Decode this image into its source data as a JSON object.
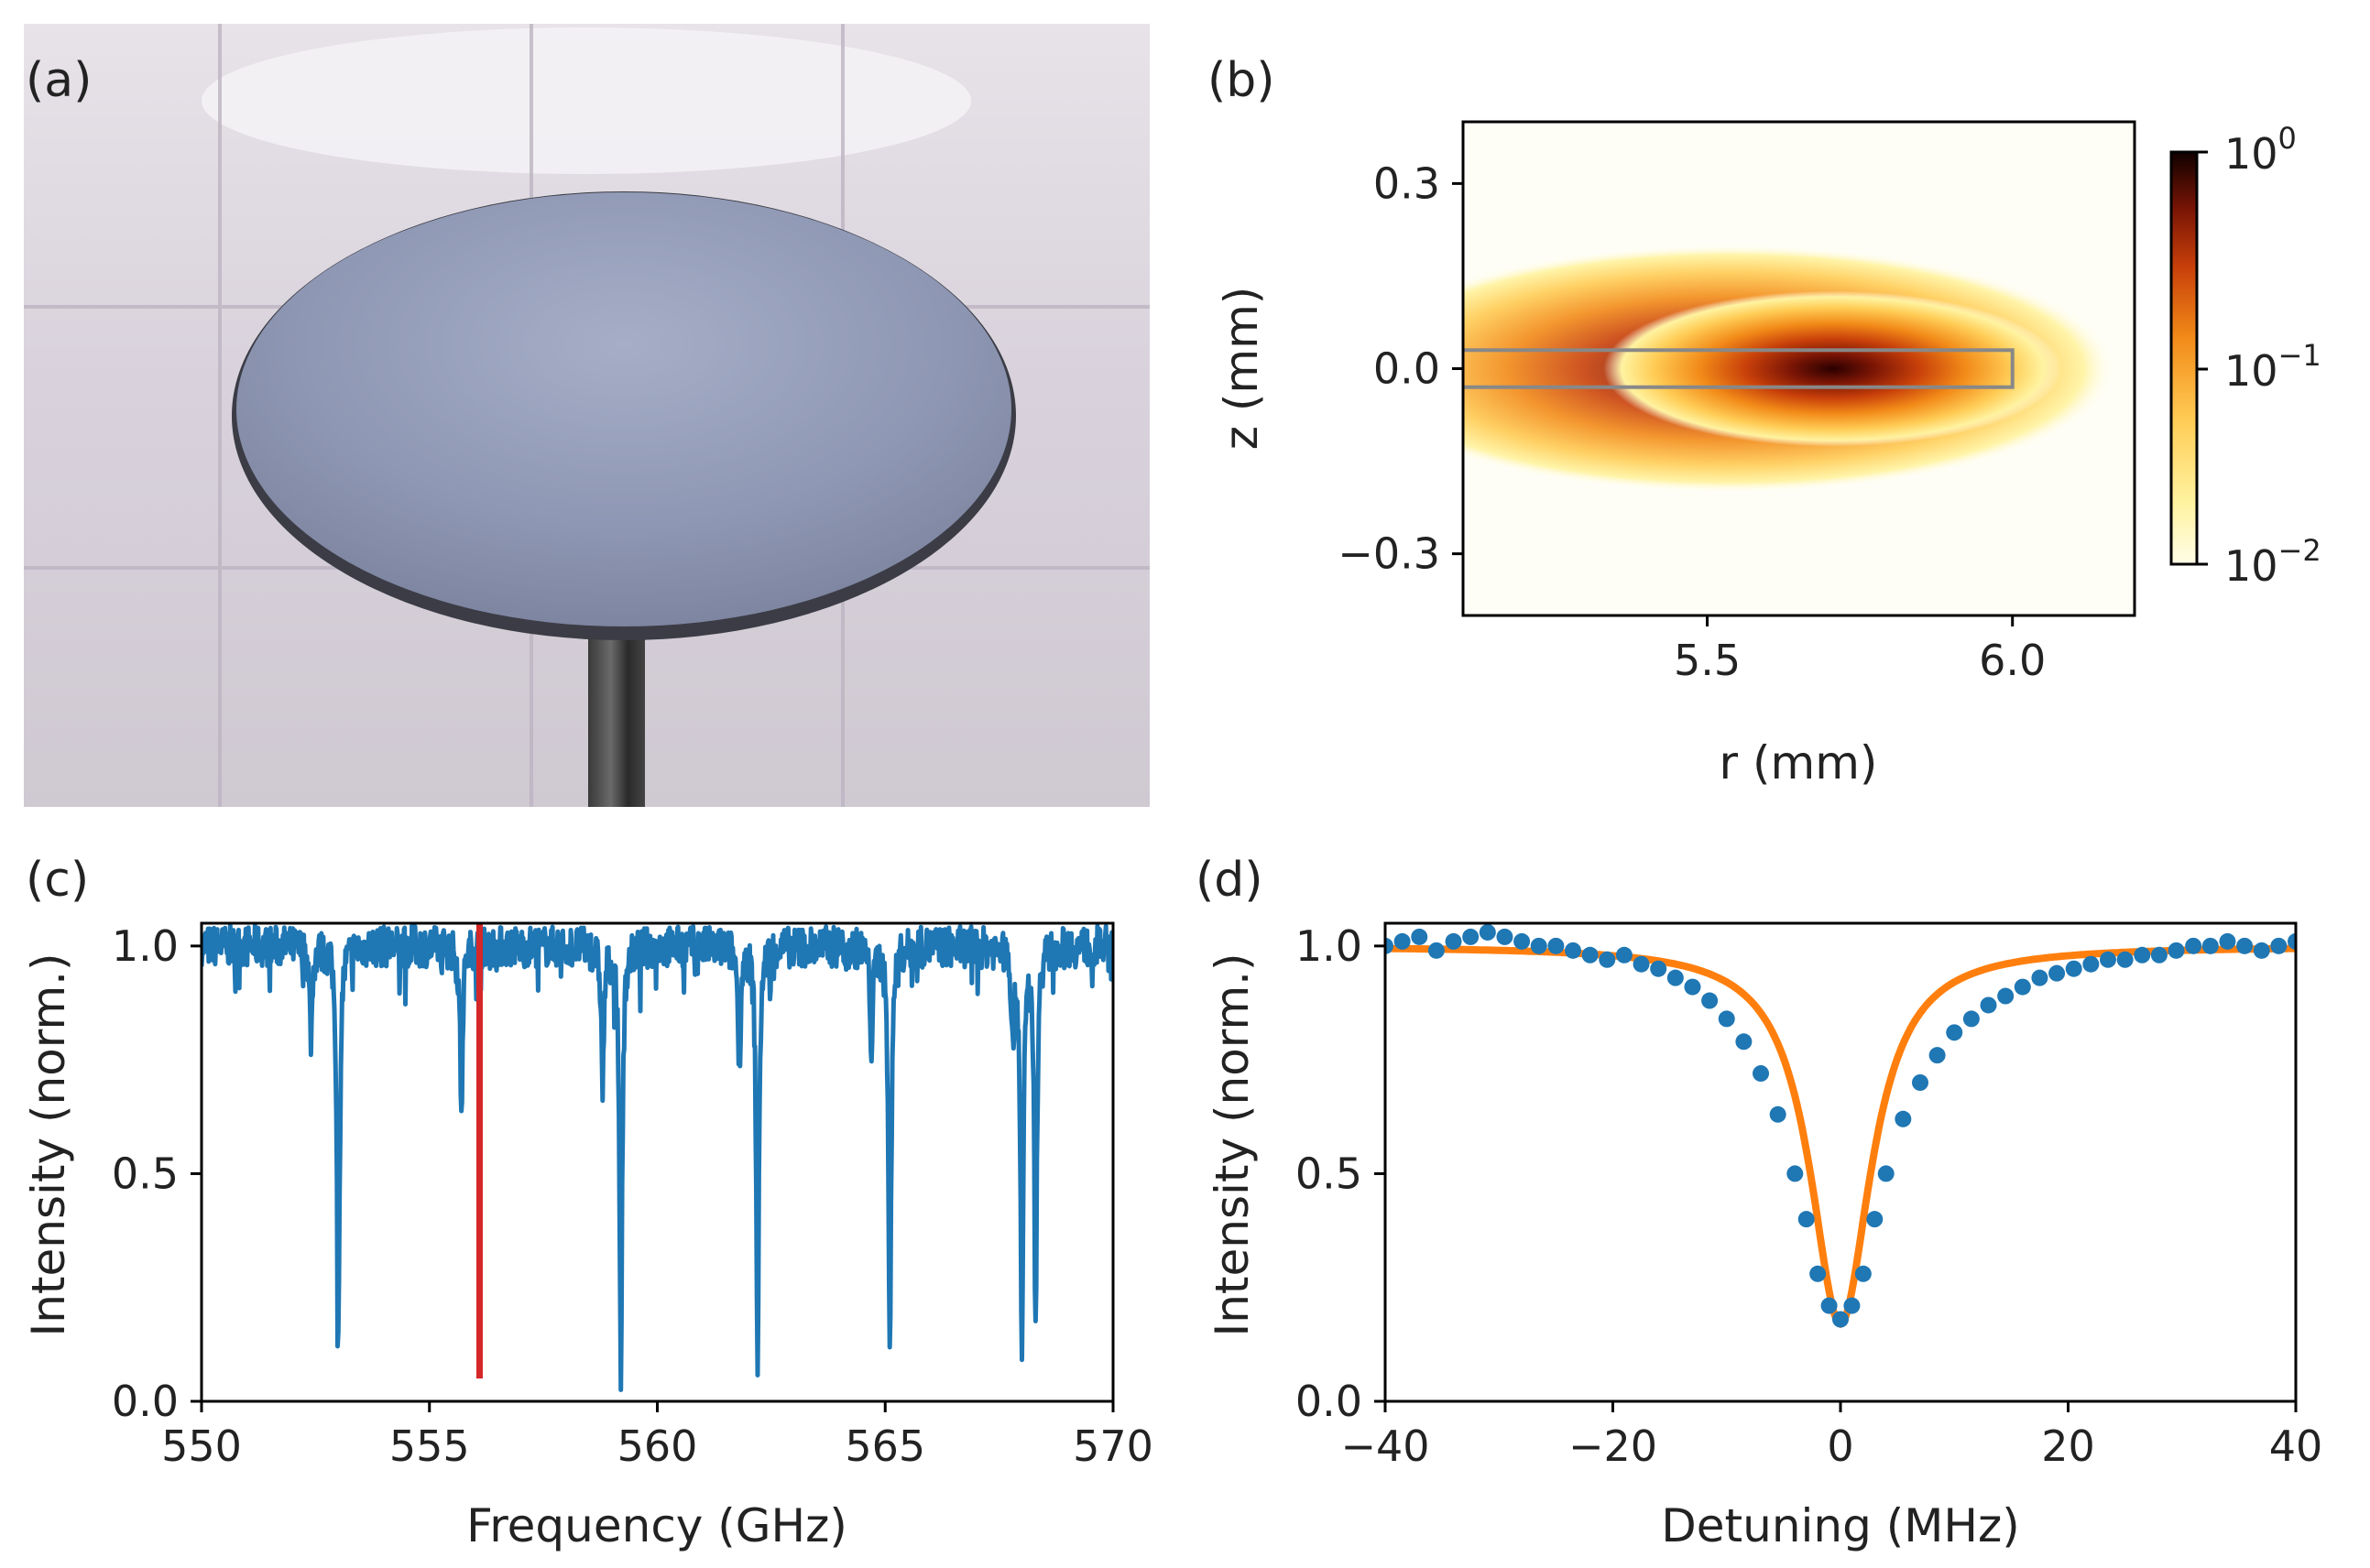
{
  "panel_labels": {
    "a": "(a)",
    "b": "(b)",
    "c": "(c)",
    "d": "(d)"
  },
  "photo": {
    "description_icon": "disk-photo-icon"
  },
  "chart_data": [
    {
      "type": "heatmap",
      "panel": "(b)",
      "xlabel": "r (mm)",
      "ylabel": "z (mm)",
      "xlim": [
        5.1,
        6.2
      ],
      "ylim": [
        -0.4,
        0.4
      ],
      "xticks": [
        "5.5",
        "6.0"
      ],
      "yticks": [
        "0.3",
        "0.0",
        "−0.3"
      ],
      "colorbar": {
        "scale": "log",
        "ticks": [
          "10",
          "10",
          "10"
        ],
        "exponents": [
          "0",
          "−1",
          "−2"
        ],
        "range": [
          0.01,
          1
        ]
      },
      "mode_center": {
        "r": 5.72,
        "z": 0.0
      },
      "disk_outline": {
        "r_min": 5.1,
        "r_max": 6.0,
        "z_min": -0.03,
        "z_max": 0.03
      }
    },
    {
      "type": "line",
      "panel": "(c)",
      "xlabel": "Frequency (GHz)",
      "ylabel": "Intensity (norm.)",
      "xlim": [
        550,
        570
      ],
      "ylim": [
        0.0,
        1.05
      ],
      "xticks": [
        "550",
        "555",
        "560",
        "565",
        "570"
      ],
      "yticks": [
        "0.0",
        "0.5",
        "1.0"
      ],
      "series": [
        {
          "name": "spectrum",
          "color": "#1f77b4",
          "dips": [
            {
              "f": 552.4,
              "depth": 0.8
            },
            {
              "f": 553.0,
              "depth": 0.12
            },
            {
              "f": 555.7,
              "depth": 0.65
            },
            {
              "f": 558.8,
              "depth": 0.7
            },
            {
              "f": 559.2,
              "depth": 0.07
            },
            {
              "f": 561.8,
              "depth": 0.75
            },
            {
              "f": 562.2,
              "depth": 0.09
            },
            {
              "f": 564.7,
              "depth": 0.78
            },
            {
              "f": 565.1,
              "depth": 0.1
            },
            {
              "f": 567.8,
              "depth": 0.8
            },
            {
              "f": 568.0,
              "depth": 0.08
            },
            {
              "f": 568.3,
              "depth": 0.19
            }
          ]
        },
        {
          "name": "highlighted resonance",
          "color": "#d62728",
          "f": 556.1,
          "depth": 0.05
        }
      ]
    },
    {
      "type": "scatter",
      "panel": "(d)",
      "xlabel": "Detuning (MHz)",
      "ylabel": "Intensity (norm.)",
      "xlim": [
        -40,
        40
      ],
      "ylim": [
        0.0,
        1.05
      ],
      "xticks": [
        "−40",
        "−20",
        "0",
        "20",
        "40"
      ],
      "yticks": [
        "0.0",
        "0.5",
        "1.0"
      ],
      "series": [
        {
          "name": "data",
          "color": "#1f77b4",
          "marker": "o",
          "x": [
            -40,
            -38.5,
            -37,
            -35.5,
            -34,
            -32.5,
            -31,
            -29.5,
            -28,
            -26.5,
            -25,
            -23.5,
            -22,
            -20.5,
            -19,
            -17.5,
            -16,
            -14.5,
            -13,
            -11.5,
            -10,
            -8.5,
            -7,
            -5.5,
            -4,
            -3,
            -2,
            -1,
            0,
            1,
            2,
            3,
            4,
            5.5,
            7,
            8.5,
            10,
            11.5,
            13,
            14.5,
            16,
            17.5,
            19,
            20.5,
            22,
            23.5,
            25,
            26.5,
            28,
            29.5,
            31,
            32.5,
            34,
            35.5,
            37,
            38.5,
            40
          ],
          "y": [
            1.0,
            1.01,
            1.02,
            0.99,
            1.01,
            1.02,
            1.03,
            1.02,
            1.01,
            1.0,
            1.0,
            0.99,
            0.98,
            0.97,
            0.98,
            0.96,
            0.95,
            0.93,
            0.91,
            0.88,
            0.84,
            0.79,
            0.72,
            0.63,
            0.5,
            0.4,
            0.28,
            0.21,
            0.18,
            0.21,
            0.28,
            0.4,
            0.5,
            0.62,
            0.7,
            0.76,
            0.81,
            0.84,
            0.87,
            0.89,
            0.91,
            0.93,
            0.94,
            0.95,
            0.96,
            0.97,
            0.97,
            0.98,
            0.98,
            0.99,
            1.0,
            1.0,
            1.01,
            1.0,
            0.99,
            1.0,
            1.01
          ]
        },
        {
          "name": "fit",
          "color": "#ff7f0e",
          "type": "lorentzian",
          "center": 0.0,
          "fwhm": 6.5,
          "depth": 0.83
        }
      ]
    }
  ]
}
